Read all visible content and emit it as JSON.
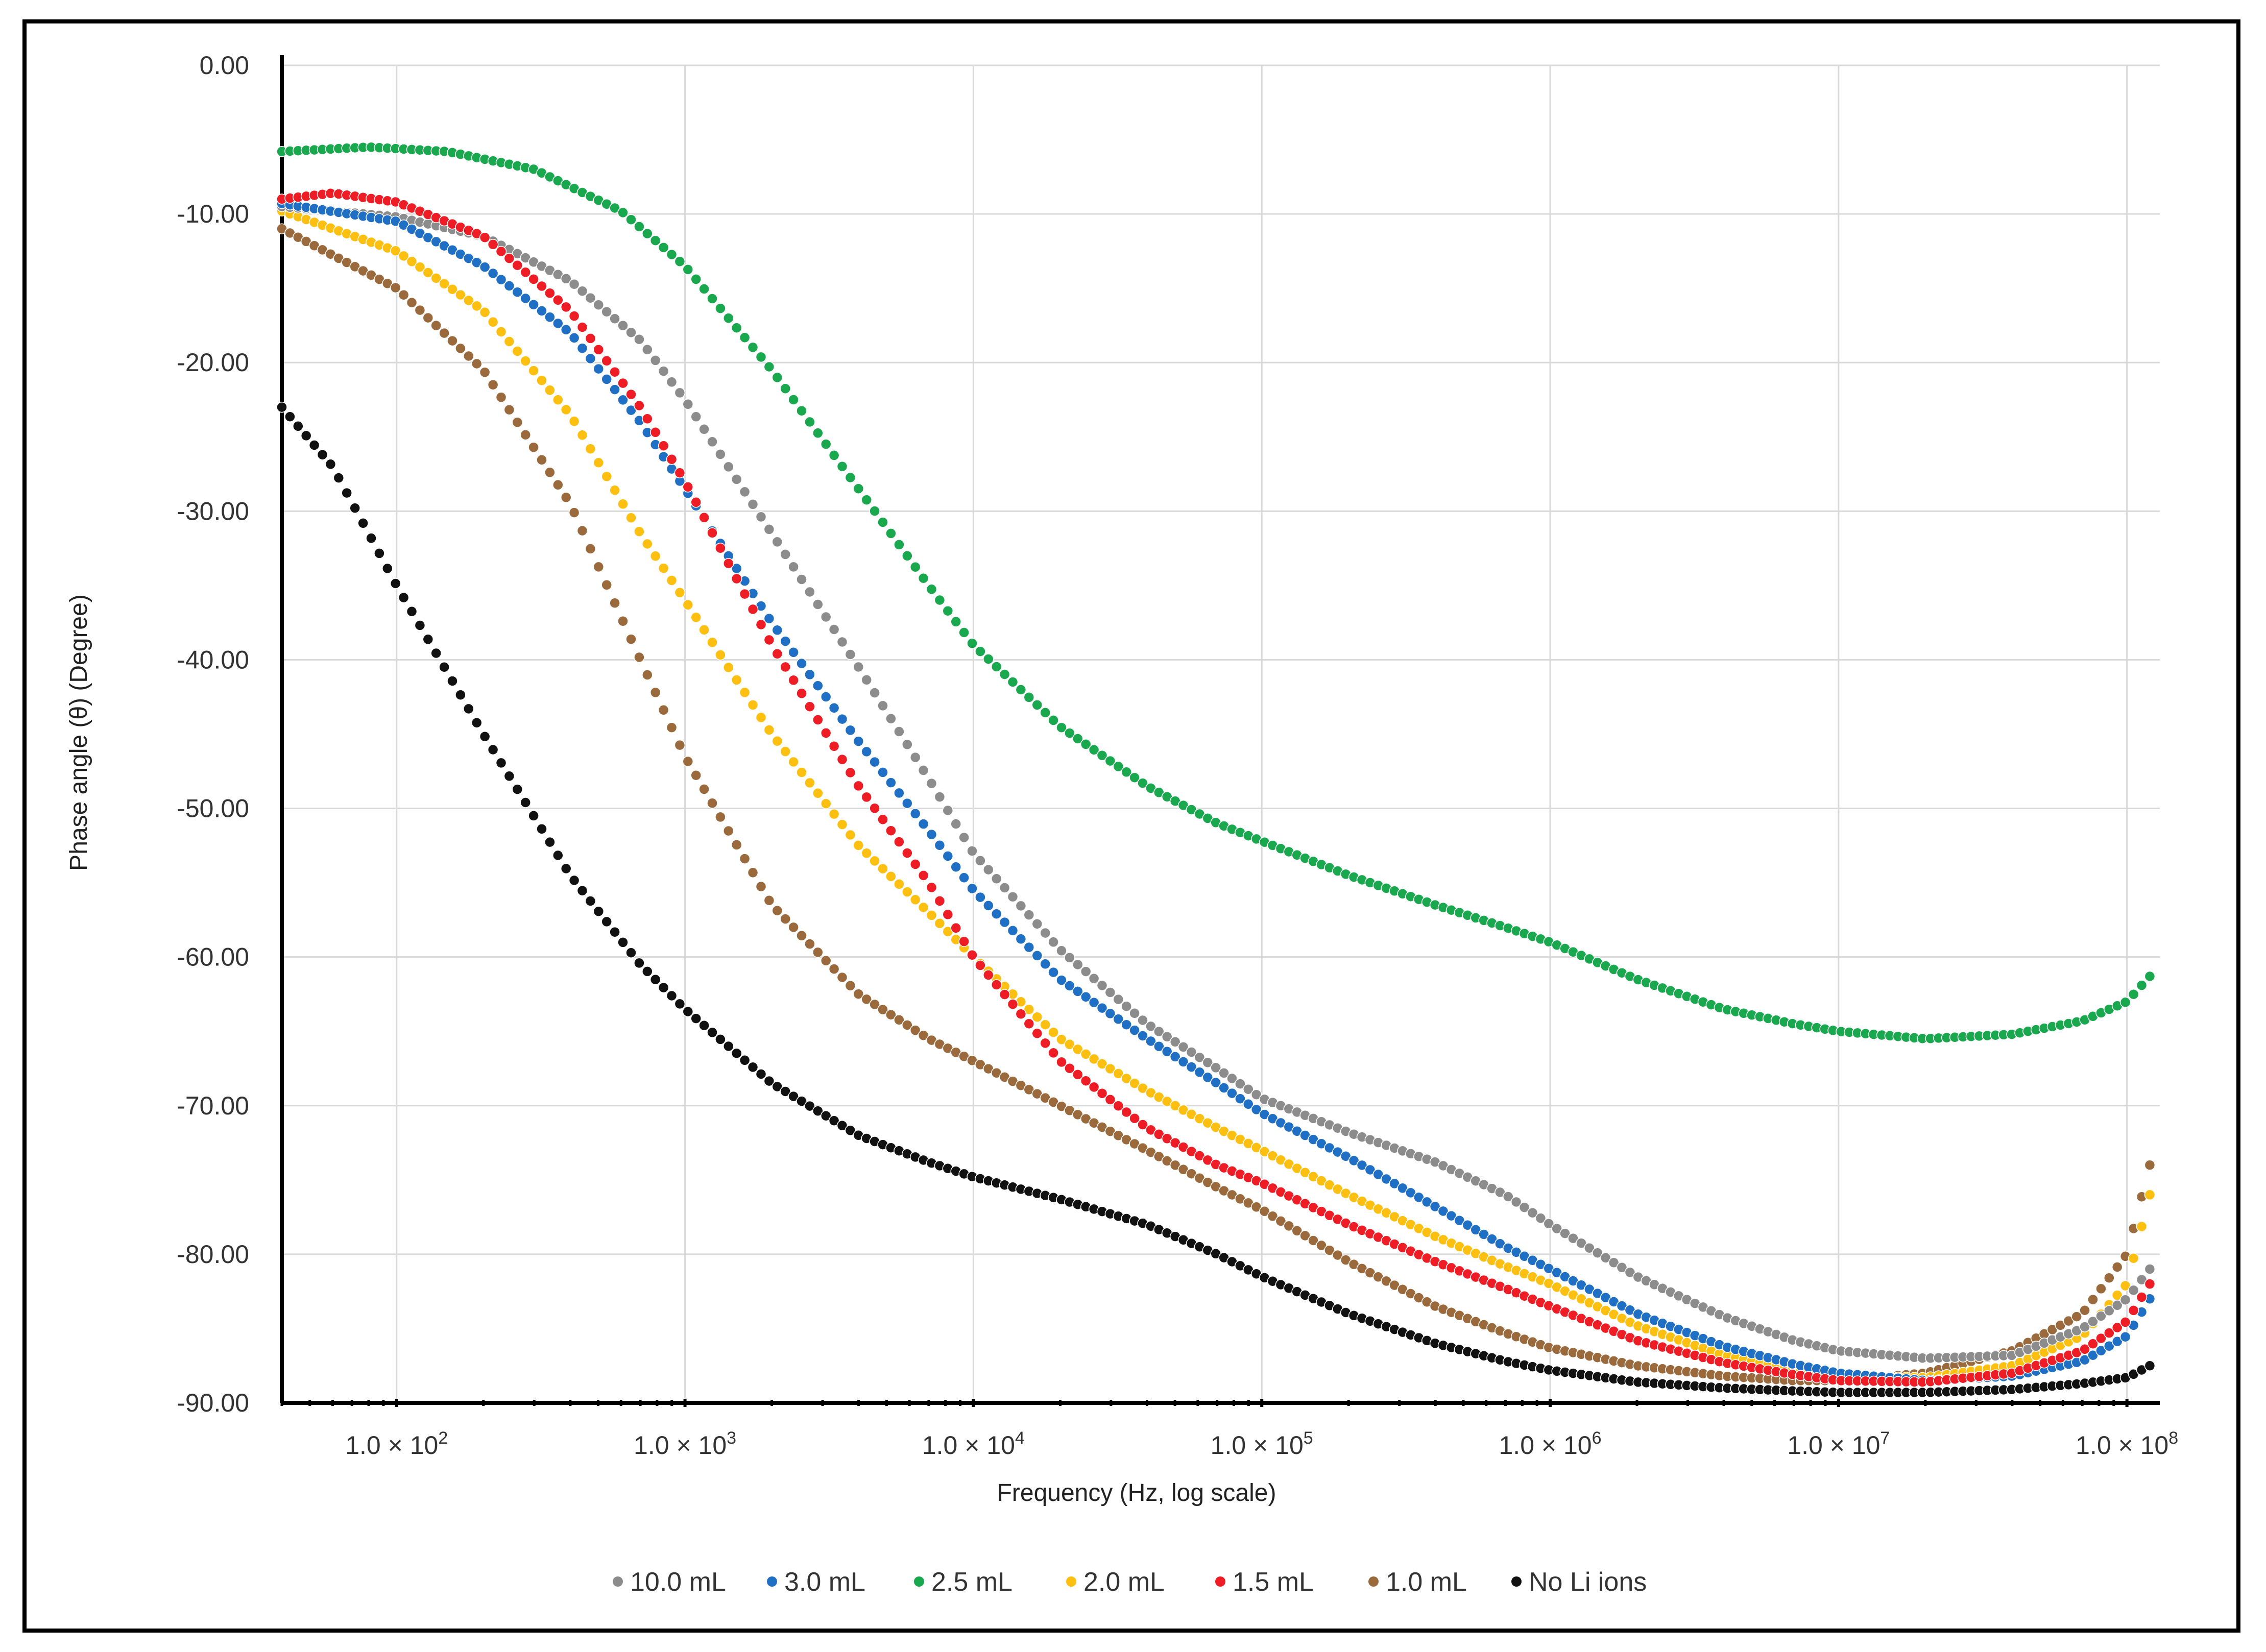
{
  "chart_data": {
    "type": "scatter",
    "title": "",
    "xlabel": "Frequency (Hz, log scale)",
    "ylabel": "Phase angle (θ) (Degree)",
    "xscale": "log",
    "xlim": [
      40,
      130000000
    ],
    "ylim": [
      -90,
      0
    ],
    "grid": true,
    "legend_position": "bottom",
    "yticks": [
      {
        "value": 0,
        "label": "0.00"
      },
      {
        "value": -10,
        "label": "-10.00"
      },
      {
        "value": -20,
        "label": "-20.00"
      },
      {
        "value": -30,
        "label": "-30.00"
      },
      {
        "value": -40,
        "label": "-40.00"
      },
      {
        "value": -50,
        "label": "-50.00"
      },
      {
        "value": -60,
        "label": "-60.00"
      },
      {
        "value": -70,
        "label": "-70.00"
      },
      {
        "value": -80,
        "label": "-80.00"
      },
      {
        "value": -90,
        "label": "-90.00"
      }
    ],
    "xticks": [
      {
        "value": 100,
        "mantissa": "1.0",
        "times": "×",
        "base": "10",
        "exp": "2"
      },
      {
        "value": 1000,
        "mantissa": "1.0",
        "times": "×",
        "base": "10",
        "exp": "3"
      },
      {
        "value": 10000,
        "mantissa": "1.0",
        "times": "×",
        "base": "10",
        "exp": "4"
      },
      {
        "value": 100000,
        "mantissa": "1.0",
        "times": "×",
        "base": "10",
        "exp": "5"
      },
      {
        "value": 1000000,
        "mantissa": "1.0",
        "times": "×",
        "base": "10",
        "exp": "6"
      },
      {
        "value": 10000000,
        "mantissa": "1.0",
        "times": "×",
        "base": "10",
        "exp": "7"
      },
      {
        "value": 100000000,
        "mantissa": "1.0",
        "times": "×",
        "base": "10",
        "exp": "8"
      }
    ],
    "series": [
      {
        "name": "10.0 mL",
        "color": "#8c8c8c",
        "points": [
          [
            40,
            -9.5
          ],
          [
            100,
            -10.2
          ],
          [
            200,
            -11.5
          ],
          [
            400,
            -14.5
          ],
          [
            700,
            -18.5
          ],
          [
            1000,
            -22.5
          ],
          [
            2000,
            -31.5
          ],
          [
            4000,
            -40.5
          ],
          [
            7000,
            -48
          ],
          [
            10000,
            -53
          ],
          [
            20000,
            -59.5
          ],
          [
            40000,
            -64.5
          ],
          [
            70000,
            -67.5
          ],
          [
            100000,
            -69.5
          ],
          [
            200000,
            -71.8
          ],
          [
            400000,
            -73.8
          ],
          [
            700000,
            -76
          ],
          [
            1000000,
            -78
          ],
          [
            2000000,
            -81.5
          ],
          [
            4000000,
            -84.2
          ],
          [
            7000000,
            -85.8
          ],
          [
            10000000,
            -86.5
          ],
          [
            20000000,
            -87
          ],
          [
            40000000,
            -86.8
          ],
          [
            70000000,
            -85
          ],
          [
            100000000,
            -83
          ],
          [
            120000000,
            -81
          ]
        ]
      },
      {
        "name": "3.0 mL",
        "color": "#1f6fc5",
        "points": [
          [
            40,
            -9.3
          ],
          [
            100,
            -10.5
          ],
          [
            200,
            -13.5
          ],
          [
            400,
            -18
          ],
          [
            700,
            -24
          ],
          [
            1000,
            -28.5
          ],
          [
            2000,
            -37.5
          ],
          [
            4000,
            -45.5
          ],
          [
            7000,
            -51.5
          ],
          [
            10000,
            -55.5
          ],
          [
            20000,
            -61.5
          ],
          [
            40000,
            -65.5
          ],
          [
            70000,
            -68.5
          ],
          [
            100000,
            -70.5
          ],
          [
            200000,
            -73.5
          ],
          [
            400000,
            -76.8
          ],
          [
            700000,
            -79.5
          ],
          [
            1000000,
            -81
          ],
          [
            2000000,
            -84
          ],
          [
            4000000,
            -86.2
          ],
          [
            7000000,
            -87.4
          ],
          [
            10000000,
            -88
          ],
          [
            20000000,
            -88.5
          ],
          [
            40000000,
            -88.2
          ],
          [
            70000000,
            -87.2
          ],
          [
            100000000,
            -85.5
          ],
          [
            120000000,
            -83
          ]
        ]
      },
      {
        "name": "2.5 mL",
        "color": "#1aa84f",
        "points": [
          [
            40,
            -5.8
          ],
          [
            80,
            -5.5
          ],
          [
            150,
            -5.8
          ],
          [
            300,
            -7
          ],
          [
            600,
            -9.8
          ],
          [
            1000,
            -13.5
          ],
          [
            2000,
            -20.5
          ],
          [
            4000,
            -28.5
          ],
          [
            7000,
            -35
          ],
          [
            10000,
            -39
          ],
          [
            20000,
            -44.5
          ],
          [
            40000,
            -48.5
          ],
          [
            70000,
            -51
          ],
          [
            100000,
            -52.2
          ],
          [
            200000,
            -54.5
          ],
          [
            400000,
            -56.5
          ],
          [
            700000,
            -58
          ],
          [
            1000000,
            -59
          ],
          [
            2000000,
            -61.5
          ],
          [
            4000000,
            -63.5
          ],
          [
            7000000,
            -64.5
          ],
          [
            10000000,
            -65
          ],
          [
            20000000,
            -65.5
          ],
          [
            40000000,
            -65.2
          ],
          [
            70000000,
            -64.3
          ],
          [
            100000000,
            -63
          ],
          [
            120000000,
            -61.3
          ]
        ]
      },
      {
        "name": "2.0 mL",
        "color": "#fdc010",
        "points": [
          [
            40,
            -9.8
          ],
          [
            100,
            -12.5
          ],
          [
            200,
            -16.5
          ],
          [
            400,
            -23.5
          ],
          [
            700,
            -31.5
          ],
          [
            1000,
            -36
          ],
          [
            2000,
            -45
          ],
          [
            4000,
            -52.5
          ],
          [
            7000,
            -57
          ],
          [
            10000,
            -60
          ],
          [
            20000,
            -65.5
          ],
          [
            40000,
            -69
          ],
          [
            70000,
            -71.5
          ],
          [
            100000,
            -73
          ],
          [
            200000,
            -76
          ],
          [
            400000,
            -78.8
          ],
          [
            700000,
            -80.8
          ],
          [
            1000000,
            -82
          ],
          [
            2000000,
            -84.8
          ],
          [
            4000000,
            -86.8
          ],
          [
            7000000,
            -87.7
          ],
          [
            10000000,
            -88.2
          ],
          [
            20000000,
            -88.3
          ],
          [
            40000000,
            -87.5
          ],
          [
            70000000,
            -85.5
          ],
          [
            100000000,
            -82
          ],
          [
            120000000,
            -76
          ]
        ]
      },
      {
        "name": "1.5 mL",
        "color": "#ee1c25",
        "points": [
          [
            40,
            -9
          ],
          [
            60,
            -8.6
          ],
          [
            100,
            -9.2
          ],
          [
            200,
            -11.5
          ],
          [
            400,
            -16.5
          ],
          [
            700,
            -23
          ],
          [
            1000,
            -28
          ],
          [
            2000,
            -39
          ],
          [
            4000,
            -48.5
          ],
          [
            7000,
            -55
          ],
          [
            10000,
            -60
          ],
          [
            20000,
            -67
          ],
          [
            40000,
            -71.5
          ],
          [
            70000,
            -74
          ],
          [
            100000,
            -75.2
          ],
          [
            200000,
            -78
          ],
          [
            400000,
            -80.5
          ],
          [
            700000,
            -82.3
          ],
          [
            1000000,
            -83.5
          ],
          [
            2000000,
            -85.8
          ],
          [
            4000000,
            -87.3
          ],
          [
            7000000,
            -88.1
          ],
          [
            10000000,
            -88.5
          ],
          [
            20000000,
            -88.6
          ],
          [
            40000000,
            -88
          ],
          [
            70000000,
            -86.5
          ],
          [
            100000000,
            -84.5
          ],
          [
            120000000,
            -82
          ]
        ]
      },
      {
        "name": "1.0 mL",
        "color": "#9a6a3c",
        "points": [
          [
            40,
            -11
          ],
          [
            100,
            -15
          ],
          [
            200,
            -20.5
          ],
          [
            400,
            -29.5
          ],
          [
            700,
            -40
          ],
          [
            1000,
            -46.5
          ],
          [
            2000,
            -56.5
          ],
          [
            4000,
            -62.5
          ],
          [
            7000,
            -65.5
          ],
          [
            10000,
            -67
          ],
          [
            20000,
            -70
          ],
          [
            40000,
            -73
          ],
          [
            70000,
            -75.5
          ],
          [
            100000,
            -77
          ],
          [
            200000,
            -80.5
          ],
          [
            400000,
            -83.5
          ],
          [
            700000,
            -85.3
          ],
          [
            1000000,
            -86.3
          ],
          [
            2000000,
            -87.5
          ],
          [
            4000000,
            -88.2
          ],
          [
            7000000,
            -88.5
          ],
          [
            10000000,
            -88.5
          ],
          [
            20000000,
            -88
          ],
          [
            40000000,
            -86.5
          ],
          [
            70000000,
            -84
          ],
          [
            100000000,
            -80
          ],
          [
            120000000,
            -74
          ]
        ]
      },
      {
        "name": "No Li ions",
        "color": "#111111",
        "points": [
          [
            40,
            -23
          ],
          [
            60,
            -27
          ],
          [
            100,
            -35
          ],
          [
            200,
            -45
          ],
          [
            400,
            -54.5
          ],
          [
            700,
            -60.5
          ],
          [
            1000,
            -63.5
          ],
          [
            2000,
            -68.5
          ],
          [
            4000,
            -72
          ],
          [
            7000,
            -73.8
          ],
          [
            10000,
            -74.8
          ],
          [
            20000,
            -76.3
          ],
          [
            40000,
            -78
          ],
          [
            70000,
            -80
          ],
          [
            100000,
            -81.5
          ],
          [
            200000,
            -84
          ],
          [
            400000,
            -86
          ],
          [
            700000,
            -87.2
          ],
          [
            1000000,
            -87.8
          ],
          [
            2000000,
            -88.6
          ],
          [
            4000000,
            -89
          ],
          [
            7000000,
            -89.2
          ],
          [
            10000000,
            -89.3
          ],
          [
            20000000,
            -89.3
          ],
          [
            40000000,
            -89.1
          ],
          [
            70000000,
            -88.7
          ],
          [
            100000000,
            -88.3
          ],
          [
            120000000,
            -87.5
          ]
        ]
      }
    ]
  }
}
